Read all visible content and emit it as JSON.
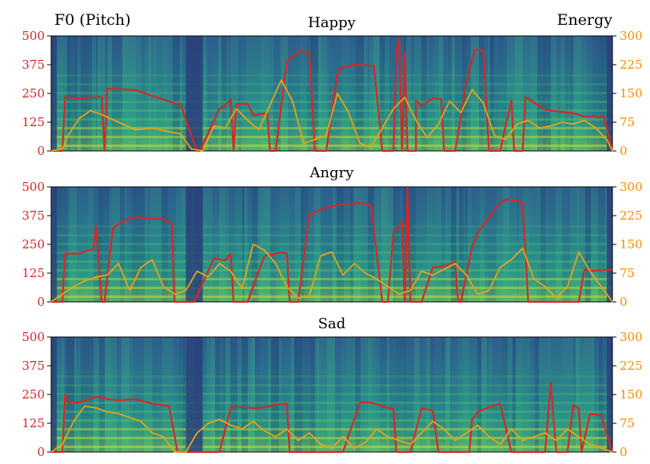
{
  "chart_data": {
    "type": "line",
    "figure": {
      "left_axis_title": "F0 (Pitch)",
      "right_axis_title": "Energy",
      "left_color": "#d62728",
      "right_color": "#ff8c00",
      "pitch_line_color": "#d62728",
      "energy_line_color": "#e8a317",
      "background": "spectrogram (viridis)"
    },
    "y_left": {
      "label": "F0 (Pitch)",
      "ylim": [
        0,
        500
      ],
      "ticks": [
        0,
        125,
        250,
        375,
        500
      ]
    },
    "y_right": {
      "label": "Energy",
      "ylim": [
        0,
        300
      ],
      "ticks": [
        0,
        75,
        150,
        225,
        300
      ]
    },
    "panels": [
      {
        "title": "Happy",
        "series": [
          {
            "name": "F0 (Pitch)",
            "axis": "left",
            "x": [
              0.0,
              0.02,
              0.025,
              0.05,
              0.07,
              0.09,
              0.095,
              0.1,
              0.105,
              0.15,
              0.18,
              0.21,
              0.225,
              0.23,
              0.26,
              0.265,
              0.3,
              0.31,
              0.32,
              0.325,
              0.33,
              0.35,
              0.36,
              0.385,
              0.39,
              0.4,
              0.42,
              0.435,
              0.44,
              0.44,
              0.46,
              0.47,
              0.49,
              0.51,
              0.515,
              0.54,
              0.575,
              0.59,
              0.6,
              0.61,
              0.615,
              0.62,
              0.625,
              0.63,
              0.635,
              0.645,
              0.65,
              0.65,
              0.66,
              0.68,
              0.695,
              0.7,
              0.72,
              0.74,
              0.755,
              0.765,
              0.77,
              0.78,
              0.8,
              0.82,
              0.825,
              0.84,
              0.845,
              0.87,
              0.88,
              0.89,
              0.91,
              0.93,
              0.95,
              0.97,
              0.975,
              0.985,
              1.0
            ],
            "y": [
              0,
              0,
              235,
              228,
              232,
              235,
              0,
              270,
              270,
              265,
              240,
              215,
              205,
              205,
              0,
              0,
              185,
              195,
              225,
              0,
              205,
              205,
              155,
              165,
              0,
              0,
              390,
              420,
              425,
              435,
              430,
              0,
              0,
              335,
              360,
              375,
              370,
              0,
              0,
              0,
              420,
              490,
              0,
              430,
              0,
              0,
              0,
              220,
              195,
              230,
              225,
              0,
              0,
              300,
              440,
              440,
              435,
              0,
              0,
              220,
              0,
              0,
              235,
              195,
              180,
              175,
              170,
              165,
              150,
              150,
              145,
              150,
              0
            ]
          },
          {
            "name": "Energy",
            "axis": "right",
            "x": [
              0.0,
              0.02,
              0.03,
              0.05,
              0.07,
              0.09,
              0.12,
              0.15,
              0.18,
              0.21,
              0.23,
              0.25,
              0.27,
              0.29,
              0.31,
              0.33,
              0.35,
              0.37,
              0.39,
              0.41,
              0.43,
              0.45,
              0.47,
              0.49,
              0.51,
              0.53,
              0.55,
              0.57,
              0.59,
              0.61,
              0.63,
              0.65,
              0.67,
              0.69,
              0.71,
              0.73,
              0.75,
              0.77,
              0.79,
              0.81,
              0.83,
              0.85,
              0.87,
              0.89,
              0.91,
              0.93,
              0.95,
              0.97,
              0.99,
              1.0
            ],
            "y": [
              0,
              5,
              40,
              85,
              105,
              95,
              75,
              55,
              60,
              50,
              45,
              5,
              0,
              65,
              60,
              110,
              80,
              55,
              120,
              185,
              130,
              20,
              30,
              40,
              150,
              100,
              20,
              10,
              60,
              110,
              140,
              80,
              35,
              70,
              130,
              100,
              160,
              125,
              40,
              30,
              70,
              80,
              60,
              65,
              75,
              70,
              80,
              60,
              30,
              0
            ]
          }
        ]
      },
      {
        "title": "Angry",
        "series": [
          {
            "name": "F0 (Pitch)",
            "axis": "left",
            "x": [
              0.0,
              0.02,
              0.025,
              0.05,
              0.075,
              0.08,
              0.09,
              0.095,
              0.11,
              0.13,
              0.155,
              0.16,
              0.2,
              0.215,
              0.22,
              0.23,
              0.24,
              0.25,
              0.255,
              0.29,
              0.31,
              0.32,
              0.325,
              0.33,
              0.35,
              0.38,
              0.39,
              0.41,
              0.42,
              0.425,
              0.44,
              0.44,
              0.46,
              0.49,
              0.52,
              0.55,
              0.57,
              0.59,
              0.6,
              0.61,
              0.62,
              0.625,
              0.63,
              0.635,
              0.64,
              0.66,
              0.68,
              0.7,
              0.72,
              0.725,
              0.73,
              0.75,
              0.76,
              0.79,
              0.8,
              0.81,
              0.83,
              0.84,
              0.85,
              0.86,
              0.875,
              0.88,
              0.89,
              0.9,
              0.91,
              0.935,
              0.94,
              0.95,
              0.96,
              1.0
            ],
            "y": [
              0,
              0,
              210,
              210,
              230,
              330,
              0,
              0,
              320,
              355,
              370,
              365,
              360,
              340,
              0,
              0,
              0,
              0,
              0,
              190,
              180,
              210,
              0,
              0,
              0,
              200,
              205,
              215,
              210,
              0,
              0,
              0,
              380,
              410,
              425,
              430,
              420,
              0,
              0,
              305,
              330,
              350,
              0,
              500,
              0,
              0,
              150,
              155,
              175,
              0,
              0,
              240,
              300,
              400,
              430,
              445,
              440,
              430,
              0,
              0,
              0,
              0,
              0,
              0,
              0,
              0,
              0,
              140,
              135,
              140
            ]
          },
          {
            "name": "Energy",
            "axis": "right",
            "x": [
              0.0,
              0.02,
              0.04,
              0.06,
              0.08,
              0.1,
              0.12,
              0.14,
              0.16,
              0.18,
              0.2,
              0.22,
              0.24,
              0.26,
              0.28,
              0.3,
              0.32,
              0.34,
              0.36,
              0.38,
              0.4,
              0.42,
              0.44,
              0.46,
              0.48,
              0.5,
              0.52,
              0.54,
              0.56,
              0.58,
              0.6,
              0.62,
              0.64,
              0.66,
              0.68,
              0.7,
              0.72,
              0.74,
              0.76,
              0.78,
              0.8,
              0.82,
              0.84,
              0.86,
              0.88,
              0.9,
              0.92,
              0.94,
              0.96,
              0.98,
              1.0
            ],
            "y": [
              0,
              20,
              40,
              55,
              65,
              70,
              100,
              30,
              90,
              110,
              40,
              20,
              30,
              80,
              65,
              100,
              80,
              35,
              150,
              135,
              100,
              40,
              10,
              15,
              120,
              130,
              70,
              100,
              75,
              60,
              40,
              20,
              30,
              80,
              70,
              85,
              100,
              70,
              20,
              30,
              90,
              110,
              140,
              60,
              40,
              10,
              40,
              130,
              80,
              40,
              0
            ]
          }
        ]
      },
      {
        "title": "Sad",
        "series": [
          {
            "name": "F0 (Pitch)",
            "axis": "left",
            "x": [
              0.0,
              0.02,
              0.025,
              0.03,
              0.05,
              0.08,
              0.1,
              0.12,
              0.15,
              0.18,
              0.21,
              0.225,
              0.23,
              0.25,
              0.28,
              0.3,
              0.32,
              0.34,
              0.37,
              0.4,
              0.42,
              0.425,
              0.43,
              0.44,
              0.46,
              0.48,
              0.5,
              0.51,
              0.515,
              0.52,
              0.55,
              0.57,
              0.59,
              0.61,
              0.615,
              0.62,
              0.63,
              0.64,
              0.66,
              0.68,
              0.69,
              0.7,
              0.72,
              0.74,
              0.745,
              0.75,
              0.76,
              0.78,
              0.8,
              0.82,
              0.825,
              0.83,
              0.84,
              0.86,
              0.88,
              0.89,
              0.9,
              0.91,
              0.92,
              0.93,
              0.94,
              0.945,
              0.96,
              0.98,
              1.0
            ],
            "y": [
              0,
              0,
              250,
              215,
              215,
              240,
              230,
              225,
              230,
              210,
              200,
              0,
              0,
              0,
              0,
              0,
              195,
              195,
              190,
              205,
              210,
              0,
              0,
              0,
              0,
              0,
              0,
              0,
              0,
              0,
              215,
              215,
              200,
              185,
              0,
              0,
              0,
              0,
              190,
              180,
              0,
              0,
              0,
              0,
              0,
              140,
              175,
              195,
              210,
              0,
              0,
              0,
              0,
              0,
              0,
              300,
              0,
              0,
              0,
              205,
              190,
              0,
              165,
              160,
              0
            ]
          },
          {
            "name": "Energy",
            "axis": "right",
            "x": [
              0.0,
              0.02,
              0.04,
              0.06,
              0.08,
              0.1,
              0.12,
              0.14,
              0.16,
              0.18,
              0.2,
              0.22,
              0.24,
              0.26,
              0.28,
              0.3,
              0.32,
              0.34,
              0.36,
              0.38,
              0.4,
              0.42,
              0.44,
              0.46,
              0.48,
              0.5,
              0.52,
              0.54,
              0.56,
              0.58,
              0.6,
              0.62,
              0.64,
              0.66,
              0.68,
              0.7,
              0.72,
              0.74,
              0.76,
              0.78,
              0.8,
              0.82,
              0.84,
              0.86,
              0.88,
              0.9,
              0.92,
              0.94,
              0.96,
              0.98,
              1.0
            ],
            "y": [
              0,
              20,
              80,
              120,
              115,
              105,
              100,
              90,
              80,
              50,
              40,
              0,
              0,
              50,
              75,
              85,
              70,
              60,
              80,
              55,
              40,
              60,
              30,
              50,
              20,
              10,
              40,
              10,
              25,
              60,
              40,
              30,
              20,
              50,
              80,
              60,
              30,
              50,
              70,
              40,
              20,
              60,
              30,
              40,
              50,
              30,
              60,
              40,
              20,
              10,
              0
            ]
          }
        ]
      }
    ]
  }
}
